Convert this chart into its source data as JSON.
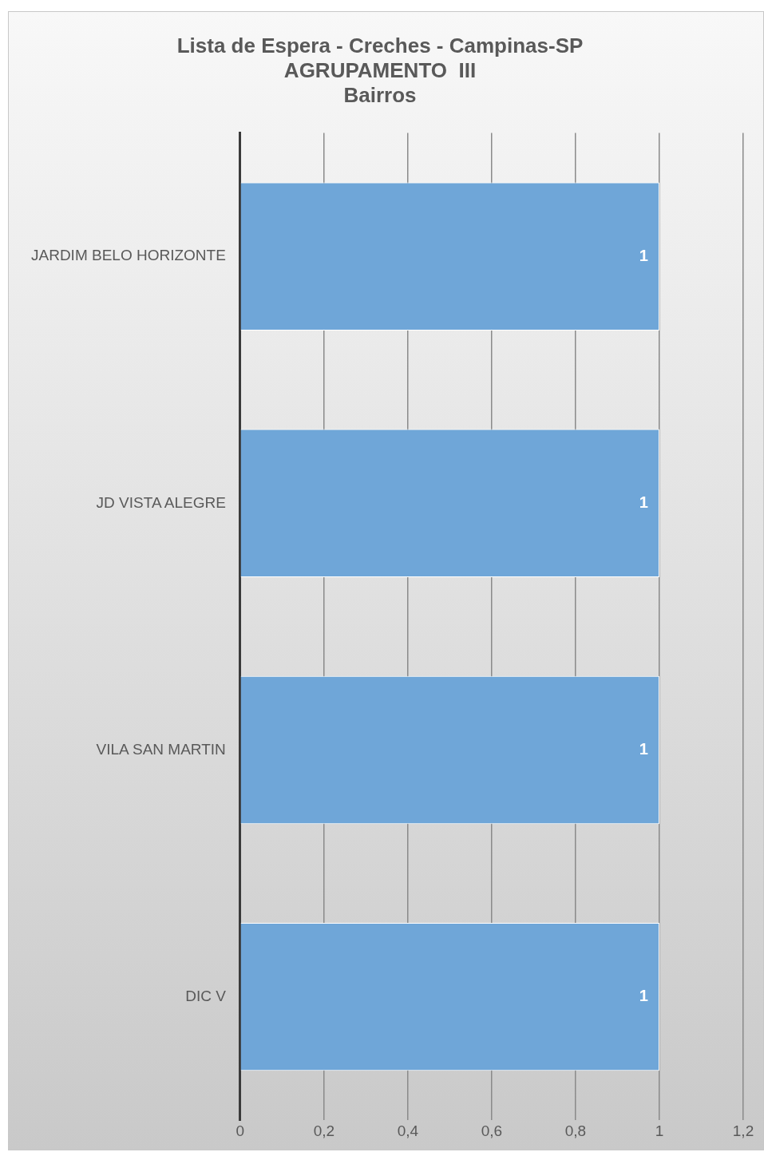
{
  "chart_data": {
    "type": "bar",
    "orientation": "horizontal",
    "title": "Lista de Espera - Creches - Campinas-SP\nAGRUPAMENTO  III\nBairros",
    "categories": [
      "JARDIM BELO HORIZONTE",
      "JD VISTA ALEGRE",
      "VILA SAN MARTIN",
      "DIC V"
    ],
    "values": [
      1,
      1,
      1,
      1
    ],
    "color": "#6fa6d8",
    "xlim": [
      0,
      1.2
    ],
    "xticks": [
      0,
      {
        "value": 0.2,
        "label": "0,2"
      },
      {
        "value": 0.4,
        "label": "0,4"
      },
      {
        "value": 0.6,
        "label": "0,6"
      },
      {
        "value": 0.8,
        "label": "0,8"
      },
      1,
      {
        "value": 1.2,
        "label": "1,2"
      }
    ],
    "grid": "x",
    "data_labels": true,
    "legend": false
  }
}
